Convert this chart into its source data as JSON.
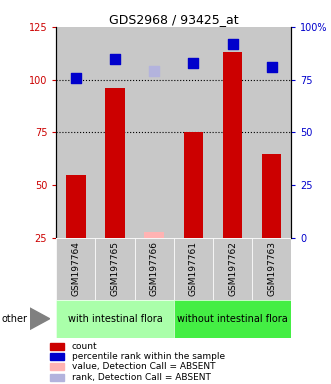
{
  "title": "GDS2968 / 93425_at",
  "samples": [
    "GSM197764",
    "GSM197765",
    "GSM197766",
    "GSM197761",
    "GSM197762",
    "GSM197763"
  ],
  "bar_heights": [
    55,
    96,
    0,
    75,
    113,
    65
  ],
  "bar_color": "#cc0000",
  "absent_bar_heights": [
    0,
    0,
    28,
    0,
    0,
    0
  ],
  "absent_bar_color": "#ffb3b3",
  "blue_squares": [
    76,
    85,
    0,
    83,
    92,
    81
  ],
  "blue_absent_squares": [
    0,
    0,
    79,
    0,
    0,
    0
  ],
  "blue_sq_color": "#0000cc",
  "blue_absent_sq_color": "#b3b3dd",
  "ylim_left": [
    25,
    125
  ],
  "ylim_right": [
    0,
    100
  ],
  "yticks_left": [
    25,
    50,
    75,
    100,
    125
  ],
  "ytick_labels_left": [
    "25",
    "50",
    "75",
    "100",
    "125"
  ],
  "yticks_right": [
    0,
    25,
    50,
    75,
    100
  ],
  "ytick_labels_right": [
    "0",
    "25",
    "50",
    "75",
    "100%"
  ],
  "hlines": [
    75,
    100
  ],
  "group1_label": "with intestinal flora",
  "group2_label": "without intestinal flora",
  "group1_color": "#aaffaa",
  "group2_color": "#44ee44",
  "legend_items": [
    {
      "label": "count",
      "color": "#cc0000"
    },
    {
      "label": "percentile rank within the sample",
      "color": "#0000cc"
    },
    {
      "label": "value, Detection Call = ABSENT",
      "color": "#ffb3b3"
    },
    {
      "label": "rank, Detection Call = ABSENT",
      "color": "#b3b3dd"
    }
  ],
  "other_label": "other",
  "bar_width": 0.5,
  "sq_size": 45,
  "bar_bottom": 25,
  "col_bg": "#c8c8c8"
}
